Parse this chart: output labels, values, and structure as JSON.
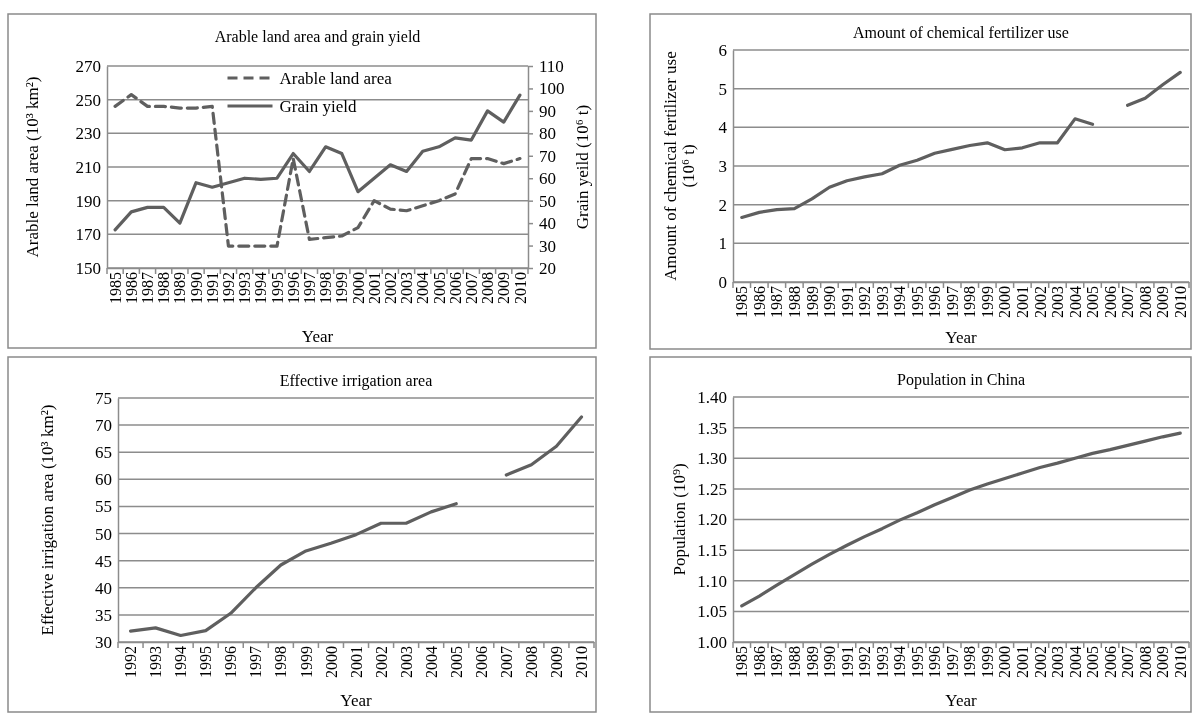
{
  "chart_data": [
    {
      "type": "line",
      "title": "Arable land area and grain yield",
      "xlabel": "Year",
      "ylabel": "Arable land area (10³ km²)",
      "y2label": "Grain yeild (10⁶ t)",
      "categories": [
        "1985",
        "1986",
        "1987",
        "1988",
        "1989",
        "1990",
        "1991",
        "1992",
        "1993",
        "1994",
        "1995",
        "1996",
        "1997",
        "1998",
        "1999",
        "2000",
        "2001",
        "2002",
        "2003",
        "2004",
        "2005",
        "2006",
        "2007",
        "2008",
        "2009",
        "2010"
      ],
      "series": [
        {
          "name": "Arable land area",
          "color": "#5f5f5f",
          "line_style": "dashed",
          "values": [
            246,
            253,
            246,
            246,
            245,
            245,
            246,
            163,
            163,
            163,
            163,
            215,
            167,
            168,
            169,
            174,
            190,
            185,
            184,
            187,
            190,
            194,
            215,
            215,
            212,
            215
          ]
        },
        {
          "name": "Grain yield",
          "color": "#5f5f5f",
          "line_style": "solid",
          "axis": "y2",
          "values": [
            37,
            45,
            47,
            47,
            40,
            58,
            56,
            58,
            60,
            59.5,
            60,
            71,
            63,
            74,
            71,
            54,
            60,
            66,
            63,
            72,
            74,
            78,
            77,
            90,
            85,
            97
          ]
        }
      ],
      "ylim": [
        150,
        270
      ],
      "yticks": [
        150,
        170,
        190,
        210,
        230,
        250,
        270
      ],
      "y2lim": [
        20,
        110
      ],
      "y2ticks": [
        20,
        30,
        40,
        50,
        60,
        70,
        80,
        90,
        100,
        110
      ],
      "grid": "y",
      "legend": "top",
      "marker": "none"
    },
    {
      "type": "line",
      "title": "Amount of chemical fertilizer use",
      "xlabel": "Year",
      "ylabel": "Amount of chemical fertilizer use (10⁶ t)",
      "categories": [
        "1985",
        "1986",
        "1987",
        "1988",
        "1989",
        "1990",
        "1991",
        "1992",
        "1993",
        "1994",
        "1995",
        "1996",
        "1997",
        "1998",
        "1999",
        "2000",
        "2001",
        "2002",
        "2003",
        "2004",
        "2005",
        "2006",
        "2007",
        "2008",
        "2009",
        "2010"
      ],
      "series": [
        {
          "color": "#5f5f5f",
          "values": [
            1.67,
            1.8,
            1.87,
            1.9,
            2.15,
            2.45,
            2.62,
            2.72,
            2.8,
            3.02,
            3.15,
            3.33,
            3.43,
            3.53,
            3.6,
            3.42,
            3.47,
            3.6,
            3.6,
            4.22,
            4.08,
            null,
            4.57,
            4.75,
            5.1,
            5.42
          ]
        }
      ],
      "ylim": [
        0,
        6
      ],
      "yticks": [
        0,
        1,
        2,
        3,
        4,
        5,
        6
      ],
      "grid": "y",
      "legend": false,
      "marker": "none"
    },
    {
      "type": "line",
      "title": "Effective irrigation area",
      "xlabel": "Year",
      "ylabel": "Effective irrigation area (10³ km²)",
      "categories": [
        "1992",
        "1993",
        "1994",
        "1995",
        "1996",
        "1997",
        "1998",
        "1999",
        "2000",
        "2001",
        "2002",
        "2003",
        "2004",
        "2005",
        "2006",
        "2007",
        "2008",
        "2009",
        "2010"
      ],
      "series": [
        {
          "color": "#5f5f5f",
          "values": [
            32,
            32.6,
            31.2,
            32.1,
            35.3,
            40,
            44.2,
            46.8,
            48.2,
            49.8,
            51.9,
            51.9,
            54,
            55.5,
            null,
            60.8,
            62.7,
            66.1,
            71.5
          ]
        }
      ],
      "ylim": [
        30,
        75
      ],
      "yticks": [
        30,
        35,
        40,
        45,
        50,
        55,
        60,
        65,
        70,
        75
      ],
      "grid": "y",
      "legend": false,
      "marker": "none"
    },
    {
      "type": "line",
      "title": "Population in China",
      "xlabel": "Year",
      "ylabel": "Population (10⁹)",
      "categories": [
        "1985",
        "1986",
        "1987",
        "1988",
        "1989",
        "1990",
        "1991",
        "1992",
        "1993",
        "1994",
        "1995",
        "1996",
        "1997",
        "1998",
        "1999",
        "2000",
        "2001",
        "2002",
        "2003",
        "2004",
        "2005",
        "2006",
        "2007",
        "2008",
        "2009",
        "2010"
      ],
      "series": [
        {
          "color": "#5f5f5f",
          "values": [
            1.059,
            1.075,
            1.093,
            1.11,
            1.127,
            1.143,
            1.158,
            1.172,
            1.185,
            1.199,
            1.211,
            1.224,
            1.236,
            1.248,
            1.258,
            1.267,
            1.276,
            1.285,
            1.292,
            1.3,
            1.308,
            1.314,
            1.321,
            1.328,
            1.335,
            1.341
          ]
        }
      ],
      "ylim": [
        1.0,
        1.4
      ],
      "yticks": [
        {
          "value": 1.0,
          "label": "1.00"
        },
        {
          "value": 1.05,
          "label": "1.05"
        },
        {
          "value": 1.1,
          "label": "1.10"
        },
        {
          "value": 1.15,
          "label": "1.15"
        },
        {
          "value": 1.2,
          "label": "1.20"
        },
        {
          "value": 1.25,
          "label": "1.25"
        },
        {
          "value": 1.3,
          "label": "1.30"
        },
        {
          "value": 1.35,
          "label": "1.35"
        },
        {
          "value": 1.4,
          "label": "1.40"
        }
      ],
      "grid": "y",
      "legend": false,
      "marker": "none"
    }
  ]
}
